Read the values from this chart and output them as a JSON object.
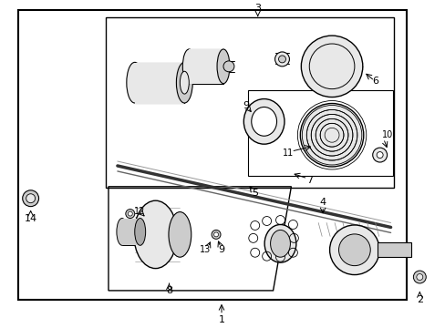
{
  "bg_color": "#ffffff",
  "black": "#000000",
  "gray1": "#aaaaaa",
  "gray2": "#cccccc",
  "gray3": "#e8e8e8",
  "figsize": [
    4.89,
    3.6
  ],
  "dpi": 100
}
